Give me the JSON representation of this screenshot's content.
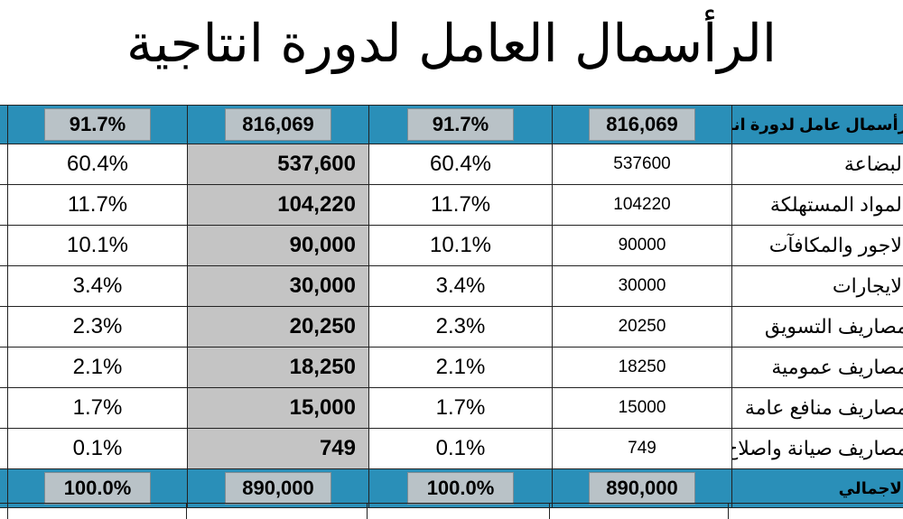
{
  "title": "الرأسمال العامل لدورة انتاجية",
  "table": {
    "header": {
      "label": "رأسمال عامل لدورة انتاجية",
      "value": "816,069",
      "pct": "91.7%",
      "alt_value": "816,069",
      "alt_pct": "91.7%"
    },
    "rows": [
      {
        "label": "البضاعة",
        "value": "537600",
        "pct": "60.4%",
        "alt_value": "537,600",
        "alt_pct": "60.4%"
      },
      {
        "label": "المواد المستهلكة",
        "value": "104220",
        "pct": "11.7%",
        "alt_value": "104,220",
        "alt_pct": "11.7%"
      },
      {
        "label": "الاجور والمكافآت",
        "value": "90000",
        "pct": "10.1%",
        "alt_value": "90,000",
        "alt_pct": "10.1%"
      },
      {
        "label": "الايجارات",
        "value": "30000",
        "pct": "3.4%",
        "alt_value": "30,000",
        "alt_pct": "3.4%"
      },
      {
        "label": "مصاريف التسويق",
        "value": "20250",
        "pct": "2.3%",
        "alt_value": "20,250",
        "alt_pct": "2.3%"
      },
      {
        "label": "مصاريف عمومية",
        "value": "18250",
        "pct": "2.1%",
        "alt_value": "18,250",
        "alt_pct": "2.1%"
      },
      {
        "label": "مصاريف منافع عامة",
        "value": "15000",
        "pct": "1.7%",
        "alt_value": "15,000",
        "alt_pct": "1.7%"
      },
      {
        "label": "مصاريف صيانة واصلاح",
        "value": "749",
        "pct": "0.1%",
        "alt_value": "749",
        "alt_pct": "0.1%"
      }
    ],
    "footer": {
      "label": "الاجمالي",
      "value": "890,000",
      "pct": "100.0%",
      "alt_value": "890,000",
      "alt_pct": "100.0%"
    }
  },
  "colors": {
    "header_bg": "#2a8fb8",
    "highlight_column_bg": "#c4c4c4"
  }
}
